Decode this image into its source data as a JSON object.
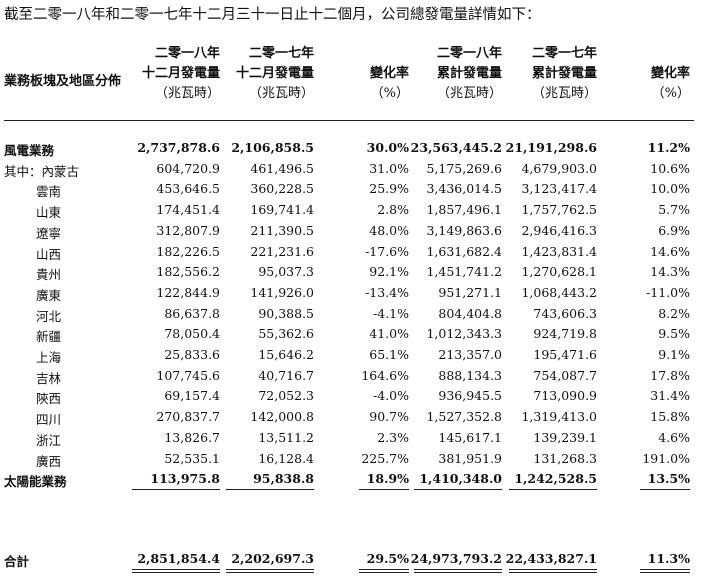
{
  "intro": "截至二零一八年和二零一七年十二月三十一日止十二個月，公司總發電量詳情如下：",
  "header": {
    "segment": "業務板塊及地區分佈",
    "cols": [
      {
        "l1": "二零一八年",
        "l2": "十二月發電量",
        "l3": "（兆瓦時）"
      },
      {
        "l1": "二零一七年",
        "l2": "十二月發電量",
        "l3": "（兆瓦時）"
      },
      {
        "l1": "",
        "l2": "變化率",
        "l3": "（%）"
      },
      {
        "l1": "二零一八年",
        "l2": "累計發電量",
        "l3": "（兆瓦時）"
      },
      {
        "l1": "二零一七年",
        "l2": "累計發電量",
        "l3": "（兆瓦時）"
      },
      {
        "l1": "",
        "l2": "變化率",
        "l3": "（%）"
      }
    ]
  },
  "rows": [
    {
      "label": "風電業務",
      "bold": true,
      "values": [
        "2,737,878.6",
        "2,106,858.5",
        "30.0%",
        "23,563,445.2",
        "21,191,298.6",
        "11.2%"
      ]
    },
    {
      "label": "其中：內蒙古",
      "values": [
        "604,720.9",
        "461,496.5",
        "31.0%",
        "5,175,269.6",
        "4,679,903.0",
        "10.6%"
      ]
    },
    {
      "label": "雲南",
      "indent": true,
      "values": [
        "453,646.5",
        "360,228.5",
        "25.9%",
        "3,436,014.5",
        "3,123,417.4",
        "10.0%"
      ]
    },
    {
      "label": "山東",
      "indent": true,
      "values": [
        "174,451.4",
        "169,741.4",
        "2.8%",
        "1,857,496.1",
        "1,757,762.5",
        "5.7%"
      ]
    },
    {
      "label": "遼寧",
      "indent": true,
      "values": [
        "312,807.9",
        "211,390.5",
        "48.0%",
        "3,149,863.6",
        "2,946,416.3",
        "6.9%"
      ]
    },
    {
      "label": "山西",
      "indent": true,
      "values": [
        "182,226.5",
        "221,231.6",
        "-17.6%",
        "1,631,682.4",
        "1,423,831.4",
        "14.6%"
      ]
    },
    {
      "label": "貴州",
      "indent": true,
      "values": [
        "182,556.2",
        "95,037.3",
        "92.1%",
        "1,451,741.2",
        "1,270,628.1",
        "14.3%"
      ]
    },
    {
      "label": "廣東",
      "indent": true,
      "values": [
        "122,844.9",
        "141,926.0",
        "-13.4%",
        "951,271.1",
        "1,068,443.2",
        "-11.0%"
      ]
    },
    {
      "label": "河北",
      "indent": true,
      "values": [
        "86,637.8",
        "90,388.5",
        "-4.1%",
        "804,404.8",
        "743,606.3",
        "8.2%"
      ]
    },
    {
      "label": "新疆",
      "indent": true,
      "values": [
        "78,050.4",
        "55,362.6",
        "41.0%",
        "1,012,343.3",
        "924,719.8",
        "9.5%"
      ]
    },
    {
      "label": "上海",
      "indent": true,
      "values": [
        "25,833.6",
        "15,646.2",
        "65.1%",
        "213,357.0",
        "195,471.6",
        "9.1%"
      ]
    },
    {
      "label": "吉林",
      "indent": true,
      "values": [
        "107,745.6",
        "40,716.7",
        "164.6%",
        "888,134.3",
        "754,087.7",
        "17.8%"
      ]
    },
    {
      "label": "陝西",
      "indent": true,
      "values": [
        "69,157.4",
        "72,052.3",
        "-4.0%",
        "936,945.5",
        "713,090.9",
        "31.4%"
      ]
    },
    {
      "label": "四川",
      "indent": true,
      "values": [
        "270,837.7",
        "142,000.8",
        "90.7%",
        "1,527,352.8",
        "1,319,413.0",
        "15.8%"
      ]
    },
    {
      "label": "浙江",
      "indent": true,
      "values": [
        "13,826.7",
        "13,511.2",
        "2.3%",
        "145,617.1",
        "139,239.1",
        "4.6%"
      ]
    },
    {
      "label": "廣西",
      "indent": true,
      "values": [
        "52,535.1",
        "16,128.4",
        "225.7%",
        "381,951.9",
        "131,268.3",
        "191.0%"
      ]
    },
    {
      "label": "太陽能業務",
      "bold": true,
      "values": [
        "113,975.8",
        "95,838.8",
        "18.9%",
        "1,410,348.0",
        "1,242,528.5",
        "13.5%"
      ]
    }
  ],
  "total": {
    "label": "合計",
    "values": [
      "2,851,854.4",
      "2,202,697.3",
      "29.5%",
      "24,973,793.2",
      "22,433,827.1",
      "11.3%"
    ]
  }
}
